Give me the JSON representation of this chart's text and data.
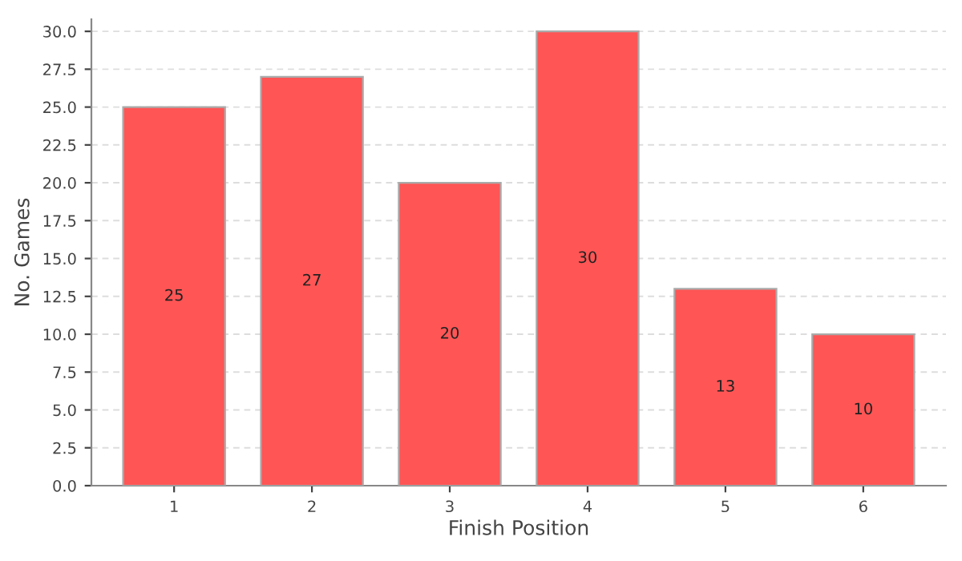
{
  "chart_data": {
    "type": "bar",
    "xlabel": "Finish Position",
    "ylabel": "No. Games",
    "categories": [
      "1",
      "2",
      "3",
      "4",
      "5",
      "6"
    ],
    "values": [
      25,
      27,
      20,
      30,
      13,
      10
    ],
    "color": "#ff5555",
    "data_labels": true,
    "ylim": [
      0,
      30.8
    ],
    "yticks": [
      {
        "value": 0,
        "label": "0.0"
      },
      {
        "value": 2.5,
        "label": "2.5"
      },
      {
        "value": 5,
        "label": "5.0"
      },
      {
        "value": 7.5,
        "label": "7.5"
      },
      {
        "value": 10,
        "label": "10.0"
      },
      {
        "value": 12.5,
        "label": "12.5"
      },
      {
        "value": 15,
        "label": "15.0"
      },
      {
        "value": 17.5,
        "label": "17.5"
      },
      {
        "value": 20,
        "label": "20.0"
      },
      {
        "value": 22.5,
        "label": "22.5"
      },
      {
        "value": 25,
        "label": "25.0"
      },
      {
        "value": 27.5,
        "label": "27.5"
      },
      {
        "value": 30,
        "label": "30.0"
      }
    ],
    "grid": "y"
  }
}
